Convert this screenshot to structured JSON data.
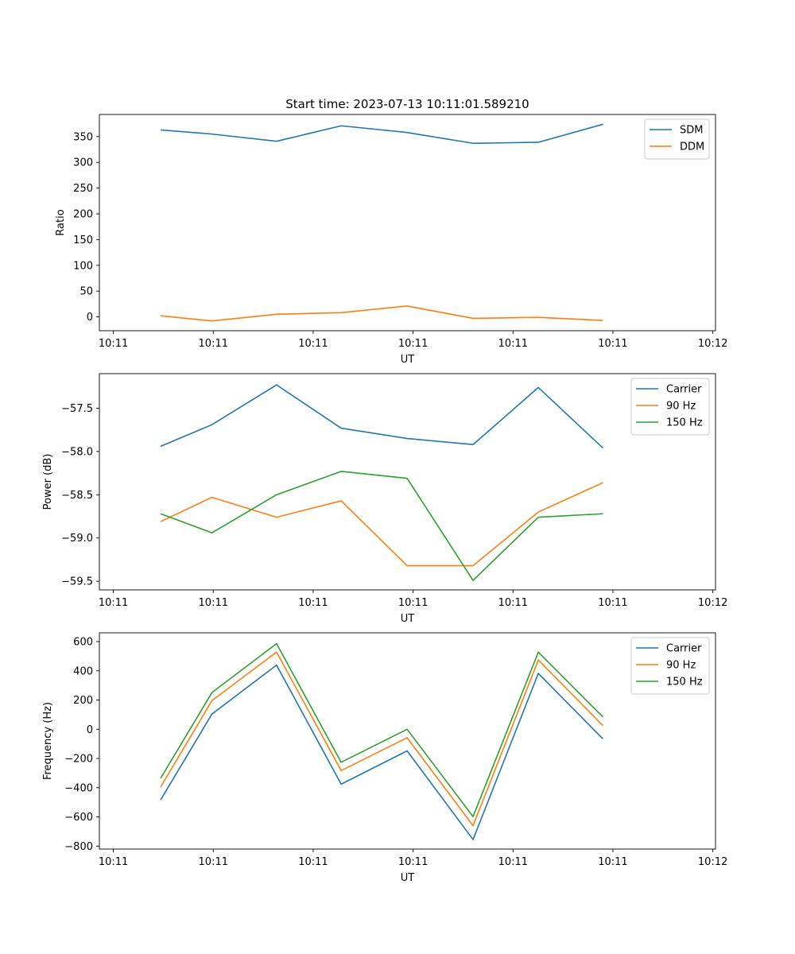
{
  "colors": {
    "blue": "#1f77b4",
    "orange": "#ff7f0e",
    "green": "#2ca02c"
  },
  "chart_data": [
    {
      "type": "line",
      "title": "Start time: 2023-07-13 10:11:01.589210",
      "xlabel": "UT",
      "ylabel": "Ratio",
      "xlim": [
        0,
        9.25
      ],
      "ylim": [
        -27,
        393
      ],
      "x_ticks": [
        0.21,
        1.71,
        3.21,
        4.71,
        6.21,
        7.71,
        9.21
      ],
      "x_tick_labels": [
        "10:11",
        "10:11",
        "10:11",
        "10:11",
        "10:11",
        "10:11",
        "10:12"
      ],
      "y_ticks": [
        0,
        50,
        100,
        150,
        200,
        250,
        300,
        350
      ],
      "y_tick_labels": [
        "0",
        "50",
        "100",
        "150",
        "200",
        "250",
        "300",
        "350"
      ],
      "legend_position": "upper right",
      "x": [
        0.92,
        1.69,
        2.66,
        3.63,
        4.62,
        5.61,
        6.59,
        7.56
      ],
      "series": [
        {
          "name": "SDM",
          "color": "#1f77b4",
          "values": [
            363,
            355,
            341,
            371,
            358,
            337,
            339,
            374
          ]
        },
        {
          "name": "DDM",
          "color": "#ff7f0e",
          "values": [
            2,
            -8,
            5,
            8,
            21,
            -3,
            -1,
            -7
          ]
        }
      ]
    },
    {
      "type": "line",
      "title": "",
      "xlabel": "UT",
      "ylabel": "Power (dB)",
      "xlim": [
        0,
        9.25
      ],
      "ylim": [
        -59.6,
        -57.1
      ],
      "x_ticks": [
        0.21,
        1.71,
        3.21,
        4.71,
        6.21,
        7.71,
        9.21
      ],
      "x_tick_labels": [
        "10:11",
        "10:11",
        "10:11",
        "10:11",
        "10:11",
        "10:11",
        "10:12"
      ],
      "y_ticks": [
        -59.5,
        -59.0,
        -58.5,
        -58.0,
        -57.5
      ],
      "y_tick_labels": [
        "−59.5",
        "−59.0",
        "−58.5",
        "−58.0",
        "−57.5"
      ],
      "legend_position": "upper right",
      "x": [
        0.92,
        1.69,
        2.66,
        3.63,
        4.62,
        5.61,
        6.59,
        7.56
      ],
      "series": [
        {
          "name": "Carrier",
          "color": "#1f77b4",
          "values": [
            -57.94,
            -57.69,
            -57.23,
            -57.73,
            -57.85,
            -57.92,
            -57.26,
            -57.96
          ]
        },
        {
          "name": "90 Hz",
          "color": "#ff7f0e",
          "values": [
            -58.81,
            -58.53,
            -58.76,
            -58.57,
            -59.32,
            -59.32,
            -58.7,
            -58.36
          ]
        },
        {
          "name": "150 Hz",
          "color": "#2ca02c",
          "values": [
            -58.72,
            -58.94,
            -58.5,
            -58.23,
            -58.31,
            -59.49,
            -58.76,
            -58.72
          ]
        }
      ]
    },
    {
      "type": "line",
      "title": "",
      "xlabel": "UT",
      "ylabel": "Frequency (Hz)",
      "xlim": [
        0,
        9.25
      ],
      "ylim": [
        -820,
        660
      ],
      "x_ticks": [
        0.21,
        1.71,
        3.21,
        4.71,
        6.21,
        7.71,
        9.21
      ],
      "x_tick_labels": [
        "10:11",
        "10:11",
        "10:11",
        "10:11",
        "10:11",
        "10:11",
        "10:12"
      ],
      "y_ticks": [
        -800,
        -600,
        -400,
        -200,
        0,
        200,
        400,
        600
      ],
      "y_tick_labels": [
        "−800",
        "−600",
        "−400",
        "−200",
        "0",
        "200",
        "400",
        "600"
      ],
      "legend_position": "upper right",
      "x": [
        0.92,
        1.69,
        2.66,
        3.63,
        4.62,
        5.61,
        6.59,
        7.56
      ],
      "series": [
        {
          "name": "Carrier",
          "color": "#1f77b4",
          "values": [
            -483,
            104,
            439,
            -376,
            -148,
            -755,
            382,
            -66
          ]
        },
        {
          "name": "90 Hz",
          "color": "#ff7f0e",
          "values": [
            -395,
            196,
            528,
            -283,
            -58,
            -660,
            474,
            25
          ]
        },
        {
          "name": "150 Hz",
          "color": "#2ca02c",
          "values": [
            -335,
            251,
            586,
            -226,
            0,
            -598,
            528,
            84
          ]
        }
      ]
    }
  ]
}
